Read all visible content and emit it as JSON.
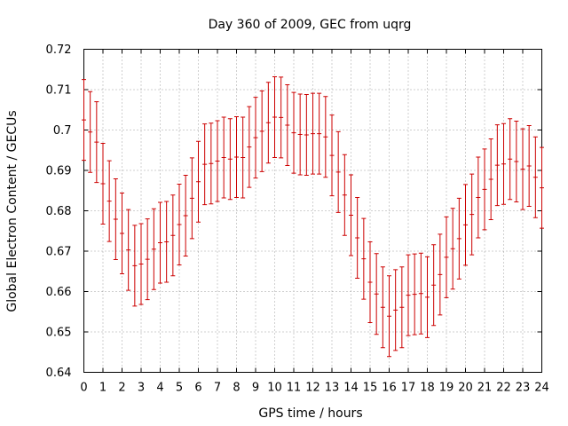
{
  "chart_data": {
    "type": "errorbar",
    "title": "Day 360 of 2009, GEC from uqrg",
    "xlabel": "GPS time / hours",
    "ylabel": "Global Electron Content / GECUs",
    "xlim": [
      0,
      24
    ],
    "ylim": [
      0.64,
      0.72
    ],
    "grid": true,
    "color": "#cc0000",
    "xticks": [
      "0",
      "1",
      "2",
      "3",
      "4",
      "5",
      "6",
      "7",
      "8",
      "9",
      "10",
      "11",
      "12",
      "13",
      "14",
      "15",
      "16",
      "17",
      "18",
      "19",
      "20",
      "21",
      "22",
      "23",
      "24"
    ],
    "yticks": [
      "0.64",
      "0.65",
      "0.66",
      "0.67",
      "0.68",
      "0.69",
      "0.7",
      "0.71",
      "0.72"
    ],
    "x": [
      0,
      0.333,
      0.667,
      1,
      1.333,
      1.667,
      2,
      2.333,
      2.667,
      3,
      3.333,
      3.667,
      4,
      4.333,
      4.667,
      5,
      5.333,
      5.667,
      6,
      6.333,
      6.667,
      7,
      7.333,
      7.667,
      8,
      8.333,
      8.667,
      9,
      9.333,
      9.667,
      10,
      10.333,
      10.667,
      11,
      11.333,
      11.667,
      12,
      12.333,
      12.667,
      13,
      13.333,
      13.667,
      14,
      14.333,
      14.667,
      15,
      15.333,
      15.667,
      16,
      16.333,
      16.667,
      17,
      17.333,
      17.667,
      18,
      18.333,
      18.667,
      19,
      19.333,
      19.667,
      20,
      20.333,
      20.667,
      21,
      21.333,
      21.667,
      22,
      22.333,
      22.667,
      23,
      23.333,
      23.667,
      24
    ],
    "y": [
      0.7025,
      0.6995,
      0.697,
      0.6867,
      0.6824,
      0.6779,
      0.6744,
      0.6703,
      0.6664,
      0.6668,
      0.668,
      0.6705,
      0.6721,
      0.6723,
      0.6739,
      0.6766,
      0.6788,
      0.6831,
      0.6872,
      0.6915,
      0.6917,
      0.6923,
      0.6932,
      0.6928,
      0.6933,
      0.6932,
      0.6958,
      0.6981,
      0.6997,
      0.7018,
      0.7032,
      0.7031,
      0.7012,
      0.6993,
      0.6989,
      0.6988,
      0.6991,
      0.6991,
      0.6983,
      0.6937,
      0.6896,
      0.6839,
      0.6789,
      0.6733,
      0.6681,
      0.6623,
      0.6594,
      0.6561,
      0.6539,
      0.6554,
      0.6561,
      0.6591,
      0.6593,
      0.6595,
      0.6586,
      0.6616,
      0.6642,
      0.6685,
      0.6706,
      0.6731,
      0.6765,
      0.6791,
      0.6833,
      0.6853,
      0.6878,
      0.6913,
      0.6916,
      0.6928,
      0.6922,
      0.6903,
      0.6911,
      0.6883,
      0.6857
    ],
    "error": [
      0.01,
      0.01,
      0.01,
      0.01,
      0.01,
      0.01,
      0.01,
      0.01,
      0.01,
      0.01,
      0.01,
      0.01,
      0.01,
      0.01,
      0.01,
      0.01,
      0.01,
      0.01,
      0.01,
      0.01,
      0.01,
      0.01,
      0.01,
      0.01,
      0.01,
      0.01,
      0.01,
      0.01,
      0.01,
      0.01,
      0.01,
      0.01,
      0.01,
      0.01,
      0.01,
      0.01,
      0.01,
      0.01,
      0.01,
      0.01,
      0.01,
      0.01,
      0.01,
      0.01,
      0.01,
      0.01,
      0.01,
      0.01,
      0.01,
      0.01,
      0.01,
      0.01,
      0.01,
      0.01,
      0.01,
      0.01,
      0.01,
      0.01,
      0.01,
      0.01,
      0.01,
      0.01,
      0.01,
      0.01,
      0.01,
      0.01,
      0.01,
      0.01,
      0.01,
      0.01,
      0.01,
      0.01,
      0.01
    ]
  }
}
